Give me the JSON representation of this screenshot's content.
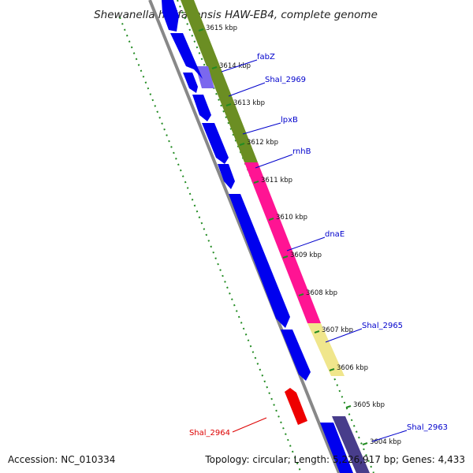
{
  "title": "Shewanella halifaxensis HAW-EB4, complete genome",
  "footer": {
    "accession": "Accession: NC_010334",
    "summary": "Topology: circular; Length: 5,226,917 bp; Genes: 4,433"
  },
  "colors": {
    "forward_cds": "#0000ee",
    "reverse_cds": "#0000ee",
    "green_band": "#6b8e23",
    "magenta_band": "#ff1493",
    "yellow_band": "#f0e68c",
    "purple_band": "#483d8b",
    "red_gene": "#ee0000",
    "backbone": "#888888",
    "gc_ticks": "#228b22",
    "label_line_blue": "#0000cc",
    "label_line_red": "#dd0000"
  },
  "ticks": [
    {
      "label": "3615 kbp"
    },
    {
      "label": "3614 kbp"
    },
    {
      "label": "3613 kbp"
    },
    {
      "label": "3612 kbp"
    },
    {
      "label": "3611 kbp"
    },
    {
      "label": "3610 kbp"
    },
    {
      "label": "3609 kbp"
    },
    {
      "label": "3608 kbp"
    },
    {
      "label": "3607 kbp"
    },
    {
      "label": "3606 kbp"
    },
    {
      "label": "3605 kbp"
    },
    {
      "label": "3604 kbp"
    }
  ],
  "gene_labels": [
    {
      "name": "fabZ",
      "color": "#0000cc"
    },
    {
      "name": "Shal_2969",
      "color": "#0000cc"
    },
    {
      "name": "lpxB",
      "color": "#0000cc"
    },
    {
      "name": "rnhB",
      "color": "#0000cc"
    },
    {
      "name": "dnaE",
      "color": "#0000cc"
    },
    {
      "name": "Shal_2965",
      "color": "#0000cc"
    },
    {
      "name": "Shal_2963",
      "color": "#0000cc"
    },
    {
      "name": "Shal_2964",
      "color": "#dd0000"
    }
  ]
}
